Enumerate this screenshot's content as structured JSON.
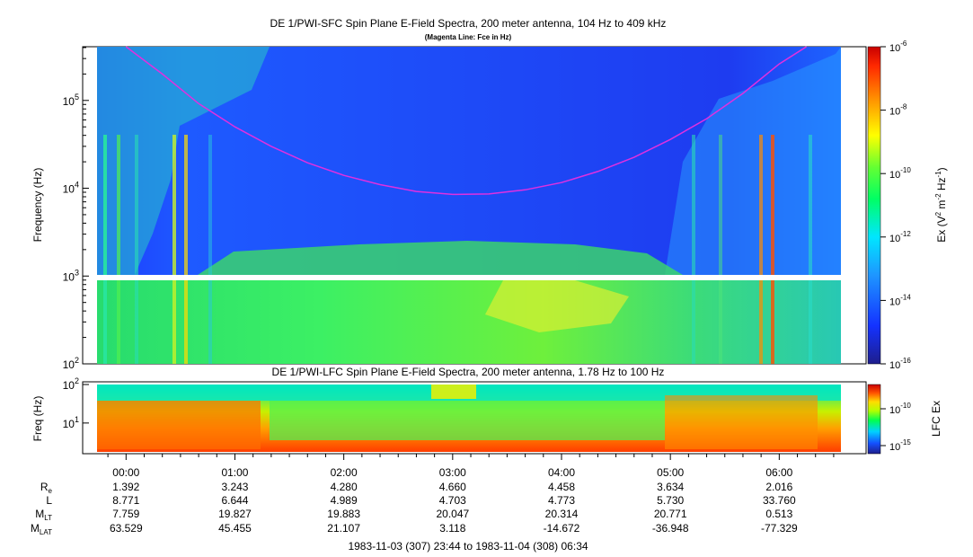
{
  "chart_data": [
    {
      "type": "heatmap",
      "title": "DE 1/PWI-SFC  Spin Plane E-Field Spectra, 200 meter antenna, 104 Hz to 409 kHz",
      "subtitle": "(Magenta Line: Fce in Hz)",
      "ylabel": "Frequency (Hz)",
      "y_scale": "log",
      "ylim": [
        100,
        409000
      ],
      "ytick_labels": [
        {
          "base": "10",
          "exp": "2"
        },
        {
          "base": "10",
          "exp": "3"
        },
        {
          "base": "10",
          "exp": "4"
        },
        {
          "base": "10",
          "exp": "5"
        }
      ],
      "colorbar": {
        "label_pre": "Ex (V",
        "label_sup1": "2",
        "label_mid": " m",
        "label_sup2": "-2",
        "label_mid2": " Hz",
        "label_sup3": "-1",
        "label_post": ")",
        "scale": "log",
        "range": [
          1e-16,
          1e-06
        ],
        "tick_labels": [
          {
            "base": "10",
            "exp": "-6"
          },
          {
            "base": "10",
            "exp": "-8"
          },
          {
            "base": "10",
            "exp": "-10"
          },
          {
            "base": "10",
            "exp": "-12"
          },
          {
            "base": "10",
            "exp": "-14"
          },
          {
            "base": "10",
            "exp": "-16"
          }
        ]
      },
      "fce_line": {
        "color": "#e030e0",
        "x_minutes": [
          0,
          20,
          40,
          60,
          80,
          100,
          120,
          140,
          160,
          180,
          200,
          220,
          240,
          260,
          280,
          300,
          320,
          340,
          360,
          375
        ],
        "y_hz": [
          520000,
          200000,
          92000,
          50000,
          30000,
          19500,
          14000,
          11000,
          9200,
          8500,
          8600,
          9600,
          11600,
          15500,
          22500,
          36000,
          62000,
          120000,
          260000,
          480000
        ]
      }
    },
    {
      "type": "heatmap",
      "title": "DE 1/PWI-LFC  Spin Plane E-Field Spectra, 200 meter antenna, 1.78 Hz to 100 Hz",
      "ylabel": "Freq (Hz)",
      "y_scale": "log",
      "ylim": [
        1.78,
        100
      ],
      "ytick_labels": [
        {
          "base": "10",
          "exp": "1"
        },
        {
          "base": "10",
          "exp": "2"
        }
      ],
      "colorbar": {
        "label": "LFC Ex",
        "scale": "log",
        "tick_labels": [
          {
            "base": "10",
            "exp": "-10"
          },
          {
            "base": "10",
            "exp": "-15"
          }
        ]
      }
    }
  ],
  "time_axis": {
    "start": "23:44",
    "end": "06:34",
    "tick_labels": [
      "00:00",
      "01:00",
      "02:00",
      "03:00",
      "04:00",
      "05:00",
      "06:00"
    ],
    "date_range": "1983-11-03 (307) 23:44 to 1983-11-04 (308) 06:34"
  },
  "ephemeris": [
    {
      "label": "R",
      "sub": "e",
      "values": [
        "1.392",
        "3.243",
        "4.280",
        "4.660",
        "4.458",
        "3.634",
        "2.016"
      ]
    },
    {
      "label": "L",
      "sub": "",
      "values": [
        "8.771",
        "6.644",
        "4.989",
        "4.703",
        "4.773",
        "5.730",
        "33.760"
      ]
    },
    {
      "label": "M",
      "sub": "LT",
      "values": [
        "7.759",
        "19.827",
        "19.883",
        "20.047",
        "20.314",
        "20.771",
        "0.513"
      ]
    },
    {
      "label": "M",
      "sub": "LAT",
      "values": [
        "63.529",
        "45.455",
        "21.107",
        "3.118",
        "-14.672",
        "-36.948",
        "-77.329"
      ]
    }
  ]
}
